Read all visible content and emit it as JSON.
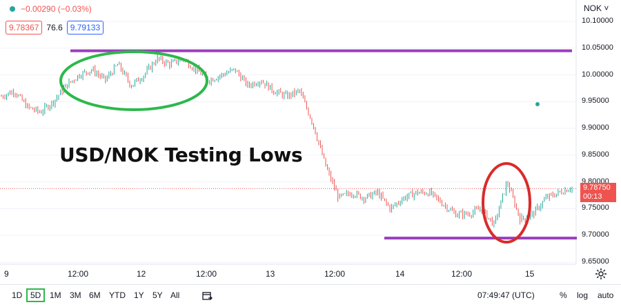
{
  "header": {
    "change": "−0.00290 (−0.03%)",
    "sell_price": "9.78367",
    "spread": "76.6",
    "buy_price": "9.79133",
    "currency_selector": "NOK ˅"
  },
  "overlay_title": "USD/NOK Testing Lows",
  "last_price": {
    "value": "9.78750",
    "countdown": "00:13"
  },
  "toolbar": {
    "ranges": [
      "1D",
      "5D",
      "1M",
      "3M",
      "6M",
      "YTD",
      "1Y",
      "5Y",
      "All"
    ],
    "active_range": "5D",
    "clock": "07:49:47 (UTC)",
    "percent": "%",
    "log": "log",
    "auto": "auto"
  },
  "colors": {
    "up": "#26a69a",
    "down": "#ef5350",
    "annotation_line": "#9b3dbd",
    "circle_green": "#2db84b",
    "circle_red": "#d92b2b"
  },
  "chart_data": {
    "type": "line",
    "title": "",
    "xlabel": "",
    "ylabel": "",
    "ylim": [
      9.63,
      10.13
    ],
    "y_ticks": [
      "10.10000",
      "10.05000",
      "10.00000",
      "9.95000",
      "9.90000",
      "9.85000",
      "9.80000",
      "9.75000",
      "9.70000",
      "9.65000"
    ],
    "x_ticks": [
      "9",
      "12:00",
      "12",
      "12:00",
      "13",
      "12:00",
      "14",
      "12:00",
      "15"
    ],
    "series": [
      {
        "values": [
          9.96,
          9.97,
          9.94,
          9.93,
          9.95,
          9.98,
          10.0,
          10.01,
          9.99,
          10.02,
          9.98,
          10.0,
          10.03,
          10.02,
          10.03,
          10.01,
          9.99,
          10.0,
          10.01,
          9.98,
          9.99,
          9.97,
          9.96,
          9.97,
          9.91,
          9.83,
          9.77,
          9.78,
          9.77,
          9.78,
          9.75,
          9.77,
          9.78,
          9.78,
          9.76,
          9.74,
          9.74,
          9.75,
          9.72,
          9.8,
          9.73,
          9.74,
          9.77,
          9.78,
          9.79
        ]
      }
    ],
    "annotations": {
      "resistance": 10.045,
      "support": 9.695
    }
  }
}
